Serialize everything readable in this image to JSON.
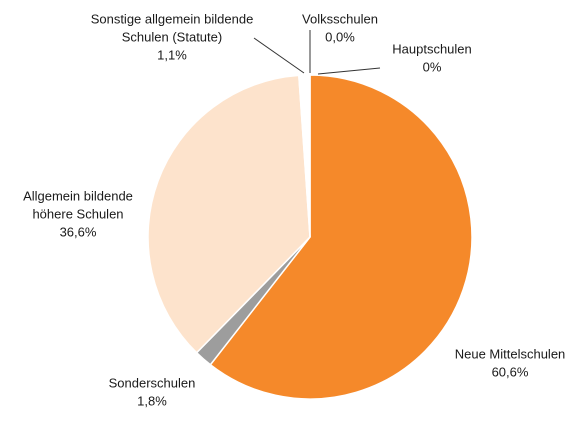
{
  "chart_data": {
    "type": "pie",
    "categories": [
      [
        "Volksschulen"
      ],
      [
        "Hauptschulen"
      ],
      [
        "Neue Mittelschulen"
      ],
      [
        "Sonderschulen"
      ],
      [
        "Allgemein bildende",
        "höhere Schulen"
      ],
      [
        "Sonstige allgemein bildende",
        "Schulen (Statute)"
      ]
    ],
    "values": [
      0,
      0,
      60.6,
      1.8,
      36.6,
      1.1
    ],
    "value_labels": [
      "0,0%",
      "0%",
      "60,6%",
      "1,8%",
      "36,6%",
      "1,1%"
    ],
    "colors": [
      "#f07d1a",
      "#f07d1a",
      "#f5892a",
      "#9d9d9d",
      "#fde3cc",
      "#ffffff"
    ]
  }
}
